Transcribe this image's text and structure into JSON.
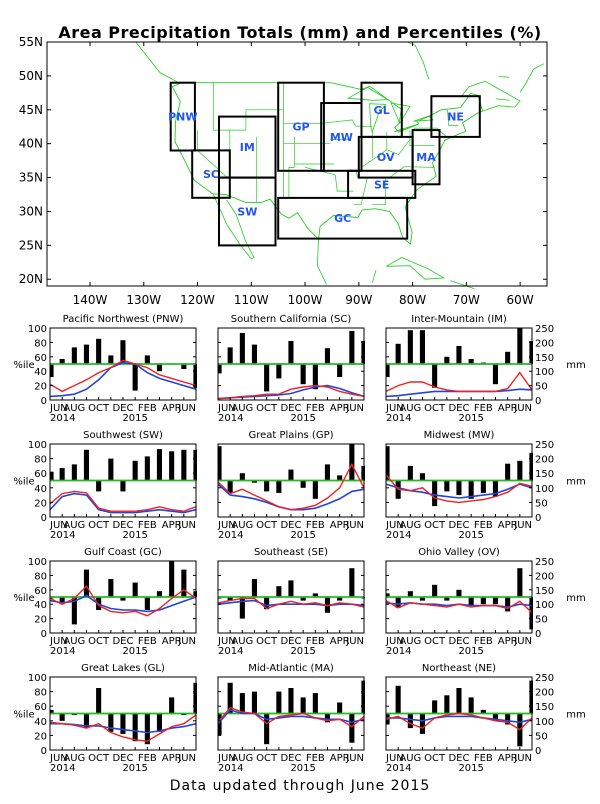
{
  "title": "Area Precipitation Totals (mm) and Percentiles (%)",
  "footer": "Data updated through June 2015",
  "colors": {
    "bars": "#000000",
    "red_line": "#ee2222",
    "blue_line": "#2244dd",
    "green_line": "#22bb22",
    "region_labels": "#2255ee",
    "map_lines": "#22cc22"
  },
  "map": {
    "lat_labels": [
      "55N",
      "50N",
      "45N",
      "40N",
      "35N",
      "30N",
      "25N",
      "20N"
    ],
    "lon_labels": [
      "140W",
      "130W",
      "120W",
      "110W",
      "100W",
      "90W",
      "80W",
      "70W",
      "60W"
    ],
    "regions": [
      {
        "code": "PNW",
        "lon": [
          -125,
          -120.5
        ],
        "lat": [
          39,
          49
        ]
      },
      {
        "code": "SC",
        "lon": [
          -121,
          -114
        ],
        "lat": [
          32,
          39
        ]
      },
      {
        "code": "IM",
        "lon": [
          -116,
          -105.5
        ],
        "lat": [
          35,
          44
        ]
      },
      {
        "code": "SW",
        "lon": [
          -116,
          -105.5
        ],
        "lat": [
          25,
          35
        ]
      },
      {
        "code": "GP",
        "lon": [
          -105,
          -96.5
        ],
        "lat": [
          36,
          49
        ]
      },
      {
        "code": "MW",
        "lon": [
          -97,
          -89.5
        ],
        "lat": [
          36,
          46
        ]
      },
      {
        "code": "GL",
        "lon": [
          -89.5,
          -82
        ],
        "lat": [
          41,
          49
        ]
      },
      {
        "code": "OV",
        "lon": [
          -90,
          -80
        ],
        "lat": [
          35,
          41
        ]
      },
      {
        "code": "SE",
        "lon": [
          -92,
          -79.5
        ],
        "lat": [
          32,
          36
        ]
      },
      {
        "code": "GC",
        "lon": [
          -105,
          -81
        ],
        "lat": [
          26,
          32
        ]
      },
      {
        "code": "MA",
        "lon": [
          -80,
          -75
        ],
        "lat": [
          34,
          42
        ]
      },
      {
        "code": "NE",
        "lon": [
          -76.5,
          -67.5
        ],
        "lat": [
          41,
          47
        ]
      }
    ]
  },
  "x_tick_labels": [
    "JUN",
    "AUG",
    "OCT",
    "DEC",
    "FEB",
    "APR",
    "JUN"
  ],
  "x_year_labels": [
    "2014",
    "2015"
  ],
  "y_left_label": "%ile",
  "y_right_label": "mm",
  "y_left_ticks": [
    "0",
    "20",
    "40",
    "60",
    "80",
    "100"
  ],
  "y_right_ticks": [
    "0",
    "50",
    "100",
    "150",
    "200",
    "250"
  ],
  "chart_data": [
    {
      "type": "bar",
      "title": "Pacific Northwest (PNW)",
      "x": [
        "Jun 2014",
        "Jul",
        "Aug",
        "Sep",
        "Oct",
        "Nov",
        "Dec",
        "Jan 2015",
        "Feb",
        "Mar",
        "Apr",
        "May",
        "Jun"
      ],
      "ylim": [
        0,
        100
      ],
      "y2lim": [
        0,
        250
      ],
      "series": [
        {
          "values": [
            32,
            57,
            73,
            77,
            85,
            62,
            83,
            13,
            62,
            40,
            50,
            43,
            17
          ]
        },
        {
          "values": [
            22,
            12,
            20,
            28,
            38,
            45,
            55,
            50,
            45,
            35,
            30,
            25,
            20
          ]
        },
        {
          "values": [
            5,
            6,
            8,
            15,
            28,
            45,
            52,
            50,
            38,
            30,
            25,
            20,
            15
          ]
        }
      ]
    },
    {
      "type": "bar",
      "title": "Southern California (SC)",
      "x": [
        "Jun 2014",
        "Jul",
        "Aug",
        "Sep",
        "Oct",
        "Nov",
        "Dec",
        "Jan 2015",
        "Feb",
        "Mar",
        "Apr",
        "May",
        "Jun"
      ],
      "ylim": [
        0,
        100
      ],
      "y2lim": [
        0,
        250
      ],
      "series": [
        {
          "values": [
            37,
            73,
            93,
            77,
            12,
            30,
            82,
            22,
            15,
            72,
            32,
            96,
            82
          ]
        },
        {
          "values": [
            2,
            3,
            5,
            6,
            8,
            8,
            15,
            18,
            20,
            18,
            12,
            8,
            5
          ]
        },
        {
          "values": [
            2,
            3,
            4,
            5,
            6,
            7,
            9,
            14,
            18,
            20,
            16,
            10,
            5
          ]
        }
      ]
    },
    {
      "type": "bar",
      "title": "Inter-Mountain (IM)",
      "x": [
        "Jun 2014",
        "Jul",
        "Aug",
        "Sep",
        "Oct",
        "Nov",
        "Dec",
        "Jan 2015",
        "Feb",
        "Mar",
        "Apr",
        "May",
        "Jun"
      ],
      "ylim": [
        0,
        100
      ],
      "y2lim": [
        0,
        250
      ],
      "series": [
        {
          "values": [
            32,
            78,
            97,
            97,
            17,
            60,
            75,
            57,
            52,
            22,
            67,
            100,
            82
          ]
        },
        {
          "values": [
            12,
            20,
            25,
            25,
            18,
            14,
            12,
            12,
            12,
            12,
            16,
            38,
            14
          ]
        },
        {
          "values": [
            5,
            6,
            8,
            10,
            12,
            12,
            12,
            12,
            12,
            12,
            13,
            15,
            14
          ]
        }
      ]
    },
    {
      "type": "bar",
      "title": "Southwest (SW)",
      "x": [
        "Jun 2014",
        "Jul",
        "Aug",
        "Sep",
        "Oct",
        "Nov",
        "Dec",
        "Jan 2015",
        "Feb",
        "Mar",
        "Apr",
        "May",
        "Jun"
      ],
      "ylim": [
        0,
        100
      ],
      "y2lim": [
        0,
        250
      ],
      "series": [
        {
          "values": [
            62,
            67,
            72,
            92,
            35,
            80,
            35,
            77,
            83,
            93,
            90,
            92,
            92
          ]
        },
        {
          "values": [
            18,
            32,
            35,
            33,
            12,
            8,
            8,
            8,
            10,
            14,
            10,
            8,
            14
          ]
        },
        {
          "values": [
            10,
            28,
            32,
            30,
            10,
            6,
            6,
            6,
            8,
            10,
            8,
            6,
            10
          ]
        }
      ]
    },
    {
      "type": "bar",
      "title": "Great Plains (GP)",
      "x": [
        "Jun 2014",
        "Jul",
        "Aug",
        "Sep",
        "Oct",
        "Nov",
        "Dec",
        "Jan 2015",
        "Feb",
        "Mar",
        "Apr",
        "May",
        "Jun"
      ],
      "ylim": [
        0,
        100
      ],
      "y2lim": [
        0,
        250
      ],
      "series": [
        {
          "values": [
            97,
            33,
            60,
            47,
            35,
            33,
            65,
            40,
            25,
            72,
            57,
            100,
            70
          ]
        },
        {
          "values": [
            48,
            32,
            38,
            30,
            22,
            14,
            10,
            12,
            16,
            26,
            40,
            72,
            40
          ]
        },
        {
          "values": [
            45,
            30,
            28,
            25,
            20,
            14,
            10,
            10,
            12,
            18,
            25,
            35,
            38
          ]
        }
      ]
    },
    {
      "type": "bar",
      "title": "Midwest (MW)",
      "x": [
        "Jun 2014",
        "Jul",
        "Aug",
        "Sep",
        "Oct",
        "Nov",
        "Dec",
        "Jan 2015",
        "Feb",
        "Mar",
        "Apr",
        "May",
        "Jun"
      ],
      "ylim": [
        0,
        100
      ],
      "y2lim": [
        0,
        250
      ],
      "series": [
        {
          "values": [
            97,
            25,
            70,
            60,
            15,
            35,
            30,
            25,
            33,
            28,
            73,
            77,
            88
          ]
        },
        {
          "values": [
            58,
            38,
            36,
            40,
            26,
            22,
            20,
            22,
            24,
            28,
            34,
            46,
            42
          ]
        },
        {
          "values": [
            45,
            40,
            36,
            34,
            30,
            28,
            26,
            28,
            30,
            32,
            38,
            45,
            40
          ]
        }
      ]
    },
    {
      "type": "bar",
      "title": "Gulf Coast (GC)",
      "x": [
        "Jun 2014",
        "Jul",
        "Aug",
        "Sep",
        "Oct",
        "Nov",
        "Dec",
        "Jan 2015",
        "Feb",
        "Mar",
        "Apr",
        "May",
        "Jun"
      ],
      "ylim": [
        0,
        100
      ],
      "y2lim": [
        0,
        250
      ],
      "series": [
        {
          "values": [
            48,
            40,
            12,
            88,
            32,
            75,
            45,
            70,
            32,
            58,
            100,
            88,
            58
          ]
        },
        {
          "values": [
            48,
            40,
            48,
            65,
            38,
            30,
            28,
            30,
            24,
            34,
            48,
            60,
            48
          ]
        },
        {
          "values": [
            45,
            42,
            44,
            52,
            40,
            34,
            32,
            32,
            30,
            32,
            38,
            44,
            50
          ]
        }
      ]
    },
    {
      "type": "bar",
      "title": "Southeast (SE)",
      "x": [
        "Jun 2014",
        "Jul",
        "Aug",
        "Sep",
        "Oct",
        "Nov",
        "Dec",
        "Jan 2015",
        "Feb",
        "Mar",
        "Apr",
        "May",
        "Jun"
      ],
      "ylim": [
        0,
        100
      ],
      "y2lim": [
        0,
        250
      ],
      "series": [
        {
          "values": [
            48,
            45,
            20,
            75,
            33,
            65,
            73,
            45,
            55,
            28,
            45,
            90,
            48
          ]
        },
        {
          "values": [
            42,
            45,
            48,
            48,
            34,
            40,
            44,
            40,
            42,
            38,
            42,
            40,
            36
          ]
        },
        {
          "values": [
            40,
            42,
            44,
            45,
            38,
            40,
            40,
            40,
            40,
            38,
            40,
            40,
            38
          ]
        }
      ]
    },
    {
      "type": "bar",
      "title": "Ohio Valley (OV)",
      "x": [
        "Jun 2014",
        "Jul",
        "Aug",
        "Sep",
        "Oct",
        "Nov",
        "Dec",
        "Jan 2015",
        "Feb",
        "Mar",
        "Apr",
        "May",
        "Jun"
      ],
      "ylim": [
        0,
        100
      ],
      "y2lim": [
        0,
        250
      ],
      "series": [
        {
          "values": [
            55,
            35,
            58,
            45,
            67,
            45,
            60,
            38,
            40,
            40,
            30,
            90,
            5
          ]
        },
        {
          "values": [
            45,
            35,
            42,
            40,
            38,
            36,
            40,
            36,
            38,
            38,
            34,
            44,
            28
          ]
        },
        {
          "values": [
            42,
            40,
            42,
            40,
            40,
            38,
            40,
            38,
            38,
            38,
            36,
            40,
            38
          ]
        }
      ]
    },
    {
      "type": "bar",
      "title": "Great Lakes (GL)",
      "x": [
        "Jun 2014",
        "Jul",
        "Aug",
        "Sep",
        "Oct",
        "Nov",
        "Dec",
        "Jan 2015",
        "Feb",
        "Mar",
        "Apr",
        "May",
        "Jun"
      ],
      "ylim": [
        0,
        100
      ],
      "y2lim": [
        0,
        250
      ],
      "series": [
        {
          "values": [
            55,
            40,
            48,
            30,
            85,
            25,
            22,
            12,
            8,
            25,
            72,
            48,
            92
          ]
        },
        {
          "values": [
            38,
            36,
            34,
            30,
            36,
            24,
            18,
            14,
            12,
            22,
            32,
            36,
            48
          ]
        },
        {
          "values": [
            36,
            36,
            35,
            33,
            33,
            30,
            28,
            26,
            24,
            26,
            30,
            32,
            36
          ]
        }
      ]
    },
    {
      "type": "bar",
      "title": "Mid-Atlantic (MA)",
      "x": [
        "Jun 2014",
        "Jul",
        "Aug",
        "Sep",
        "Oct",
        "Nov",
        "Dec",
        "Jan 2015",
        "Feb",
        "Mar",
        "Apr",
        "May",
        "Jun"
      ],
      "ylim": [
        0,
        100
      ],
      "y2lim": [
        0,
        250
      ],
      "series": [
        {
          "values": [
            20,
            92,
            78,
            80,
            8,
            80,
            85,
            72,
            78,
            38,
            65,
            10,
            95
          ]
        },
        {
          "values": [
            38,
            58,
            52,
            50,
            36,
            46,
            48,
            50,
            44,
            40,
            42,
            32,
            46
          ]
        },
        {
          "values": [
            36,
            55,
            50,
            50,
            42,
            44,
            46,
            46,
            44,
            42,
            42,
            38,
            42
          ]
        }
      ]
    },
    {
      "type": "bar",
      "title": "Northeast (NE)",
      "x": [
        "Jun 2014",
        "Jul",
        "Aug",
        "Sep",
        "Oct",
        "Nov",
        "Dec",
        "Jan 2015",
        "Feb",
        "Mar",
        "Apr",
        "May",
        "Jun"
      ],
      "ylim": [
        0,
        100
      ],
      "y2lim": [
        0,
        250
      ],
      "series": [
        {
          "values": [
            35,
            88,
            30,
            22,
            68,
            75,
            85,
            72,
            55,
            40,
            35,
            5,
            95
          ]
        },
        {
          "values": [
            42,
            46,
            36,
            30,
            44,
            48,
            50,
            48,
            44,
            40,
            38,
            28,
            44
          ]
        },
        {
          "values": [
            44,
            44,
            42,
            40,
            44,
            46,
            46,
            46,
            44,
            42,
            40,
            38,
            42
          ]
        }
      ]
    }
  ]
}
